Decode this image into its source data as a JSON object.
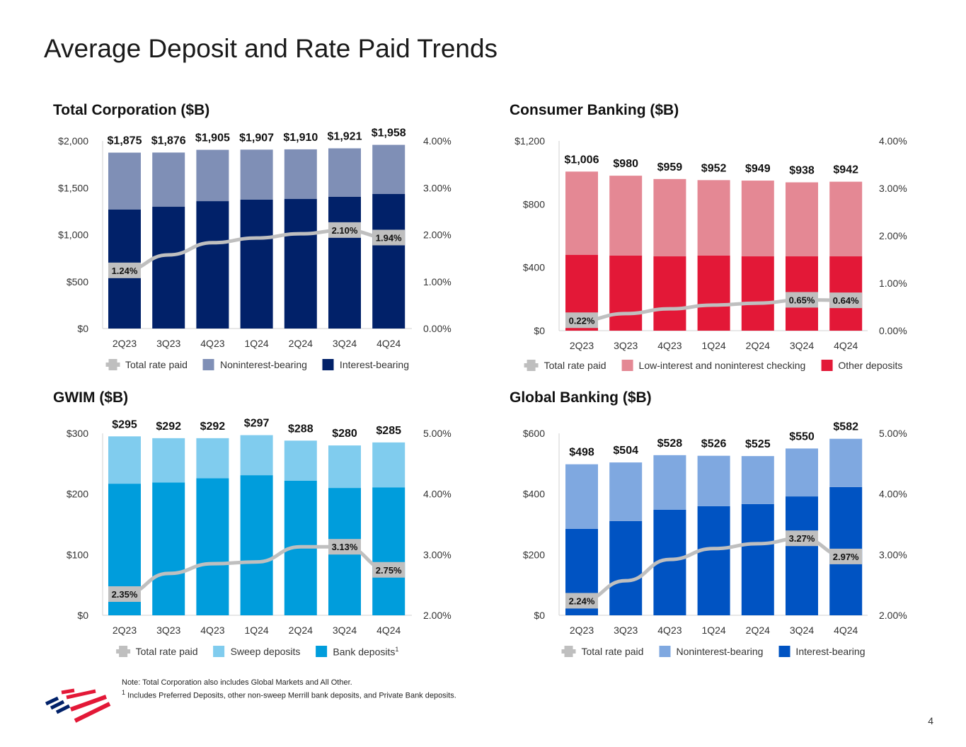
{
  "title": "Average Deposit and Rate Paid Trends",
  "notes": {
    "line1": "Note: Total Corporation also includes Global Markets and All Other.",
    "line2_marker": "1",
    "line2": "Includes Preferred Deposits, other non-sweep Merrill bank deposits, and Private Bank deposits."
  },
  "page_number": "4",
  "logo_icon": "bank-flag-logo",
  "colors": {
    "rate_line": "#bfbfbf",
    "axis": "#d0d0d0"
  },
  "chart_data": [
    {
      "type": "bar",
      "stacked": true,
      "title": "Total Corporation ($B)",
      "categories": [
        "2Q23",
        "3Q23",
        "4Q23",
        "1Q24",
        "2Q24",
        "3Q24",
        "4Q24"
      ],
      "totals": [
        1875,
        1876,
        1905,
        1907,
        1910,
        1921,
        1958
      ],
      "total_labels": [
        "$1,875",
        "$1,876",
        "$1,905",
        "$1,907",
        "$1,910",
        "$1,921",
        "$1,958"
      ],
      "series": [
        {
          "name": "Interest-bearing",
          "color": "#012169",
          "values": [
            1268,
            1298,
            1358,
            1374,
            1381,
            1404,
            1434
          ]
        },
        {
          "name": "Noninterest-bearing",
          "color": "#7f8fb6",
          "values": [
            607,
            578,
            547,
            533,
            529,
            517,
            524
          ]
        }
      ],
      "line": {
        "name": "Total rate paid",
        "values": [
          1.24,
          1.57,
          1.83,
          1.93,
          2.02,
          2.1,
          1.94
        ],
        "labels": {
          "0": "1.24%",
          "5": "2.10%",
          "6": "1.94%"
        }
      },
      "yleft": {
        "range": [
          0,
          2000
        ],
        "ticks": [
          "$0",
          "$500",
          "$1,000",
          "$1,500",
          "$2,000"
        ]
      },
      "yright": {
        "range": [
          0,
          4
        ],
        "ticks": [
          "0.00%",
          "1.00%",
          "2.00%",
          "3.00%",
          "4.00%"
        ]
      },
      "legend": [
        {
          "label": "Total rate paid",
          "kind": "line"
        },
        {
          "label": "Noninterest-bearing",
          "color": "#7f8fb6"
        },
        {
          "label": "Interest-bearing",
          "color": "#012169"
        }
      ]
    },
    {
      "type": "bar",
      "stacked": true,
      "title": "Consumer Banking ($B)",
      "categories": [
        "2Q23",
        "3Q23",
        "4Q23",
        "1Q24",
        "2Q24",
        "3Q24",
        "4Q24"
      ],
      "totals": [
        1006,
        980,
        959,
        952,
        949,
        938,
        942
      ],
      "total_labels": [
        "$1,006",
        "$980",
        "$959",
        "$952",
        "$949",
        "$938",
        "$942"
      ],
      "series": [
        {
          "name": "Other deposits",
          "color": "#e31837",
          "values": [
            479,
            475,
            470,
            475,
            470,
            470,
            470
          ]
        },
        {
          "name": "Low-interest and noninterest checking",
          "color": "#e48894",
          "values": [
            527,
            505,
            489,
            477,
            479,
            468,
            472
          ]
        }
      ],
      "line": {
        "name": "Total rate paid",
        "values": [
          0.22,
          0.36,
          0.46,
          0.54,
          0.58,
          0.65,
          0.64
        ],
        "labels": {
          "0": "0.22%",
          "5": "0.65%",
          "6": "0.64%"
        }
      },
      "yleft": {
        "range": [
          0,
          1200
        ],
        "ticks": [
          "$0",
          "$400",
          "$800",
          "$1,200"
        ]
      },
      "yright": {
        "range": [
          0,
          4
        ],
        "ticks": [
          "0.00%",
          "1.00%",
          "2.00%",
          "3.00%",
          "4.00%"
        ]
      },
      "legend": [
        {
          "label": "Total rate paid",
          "kind": "line"
        },
        {
          "label": "Low-interest and noninterest checking",
          "color": "#e48894"
        },
        {
          "label": "Other deposits",
          "color": "#e31837"
        }
      ]
    },
    {
      "type": "bar",
      "stacked": true,
      "title": "GWIM ($B)",
      "categories": [
        "2Q23",
        "3Q23",
        "4Q23",
        "1Q24",
        "2Q24",
        "3Q24",
        "4Q24"
      ],
      "totals": [
        295,
        292,
        292,
        297,
        288,
        280,
        285
      ],
      "total_labels": [
        "$295",
        "$292",
        "$292",
        "$297",
        "$288",
        "$280",
        "$285"
      ],
      "series": [
        {
          "name": "Bank deposits",
          "color": "#009ddc",
          "values": [
            217,
            219,
            226,
            231,
            222,
            210,
            211
          ]
        },
        {
          "name": "Sweep deposits",
          "color": "#80ccee",
          "values": [
            78,
            73,
            66,
            66,
            66,
            70,
            74
          ]
        }
      ],
      "line": {
        "name": "Total rate paid",
        "values": [
          2.35,
          2.69,
          2.85,
          2.88,
          3.13,
          3.13,
          2.75
        ],
        "labels": {
          "0": "2.35%",
          "5": "3.13%",
          "6": "2.75%"
        }
      },
      "yleft": {
        "range": [
          0,
          300
        ],
        "ticks": [
          "$0",
          "$100",
          "$200",
          "$300"
        ]
      },
      "yright": {
        "range": [
          2,
          5
        ],
        "ticks": [
          "2.00%",
          "3.00%",
          "4.00%",
          "5.00%"
        ]
      },
      "legend": [
        {
          "label": "Total rate paid",
          "kind": "line"
        },
        {
          "label": "Sweep deposits",
          "color": "#80ccee"
        },
        {
          "label": "Bank deposits",
          "color": "#009ddc",
          "sup": "1"
        }
      ]
    },
    {
      "type": "bar",
      "stacked": true,
      "title": "Global Banking ($B)",
      "categories": [
        "2Q23",
        "3Q23",
        "4Q23",
        "1Q24",
        "2Q24",
        "3Q24",
        "4Q24"
      ],
      "totals": [
        498,
        504,
        528,
        526,
        525,
        550,
        582
      ],
      "total_labels": [
        "$498",
        "$504",
        "$528",
        "$526",
        "$525",
        "$550",
        "$582"
      ],
      "series": [
        {
          "name": "Interest-bearing",
          "color": "#0053c2",
          "values": [
            285,
            311,
            348,
            360,
            367,
            392,
            423
          ]
        },
        {
          "name": "Noninterest-bearing",
          "color": "#7fa8e0",
          "values": [
            213,
            193,
            180,
            166,
            158,
            158,
            159
          ]
        }
      ],
      "line": {
        "name": "Total rate paid",
        "values": [
          2.24,
          2.57,
          2.92,
          3.1,
          3.18,
          3.27,
          2.97
        ],
        "labels": {
          "0": "2.24%",
          "5": "3.27%",
          "6": "2.97%"
        }
      },
      "yleft": {
        "range": [
          0,
          600
        ],
        "ticks": [
          "$0",
          "$200",
          "$400",
          "$600"
        ]
      },
      "yright": {
        "range": [
          2,
          5
        ],
        "ticks": [
          "2.00%",
          "3.00%",
          "4.00%",
          "5.00%"
        ]
      },
      "legend": [
        {
          "label": "Total rate paid",
          "kind": "line"
        },
        {
          "label": "Noninterest-bearing",
          "color": "#7fa8e0"
        },
        {
          "label": "Interest-bearing",
          "color": "#0053c2"
        }
      ]
    }
  ]
}
